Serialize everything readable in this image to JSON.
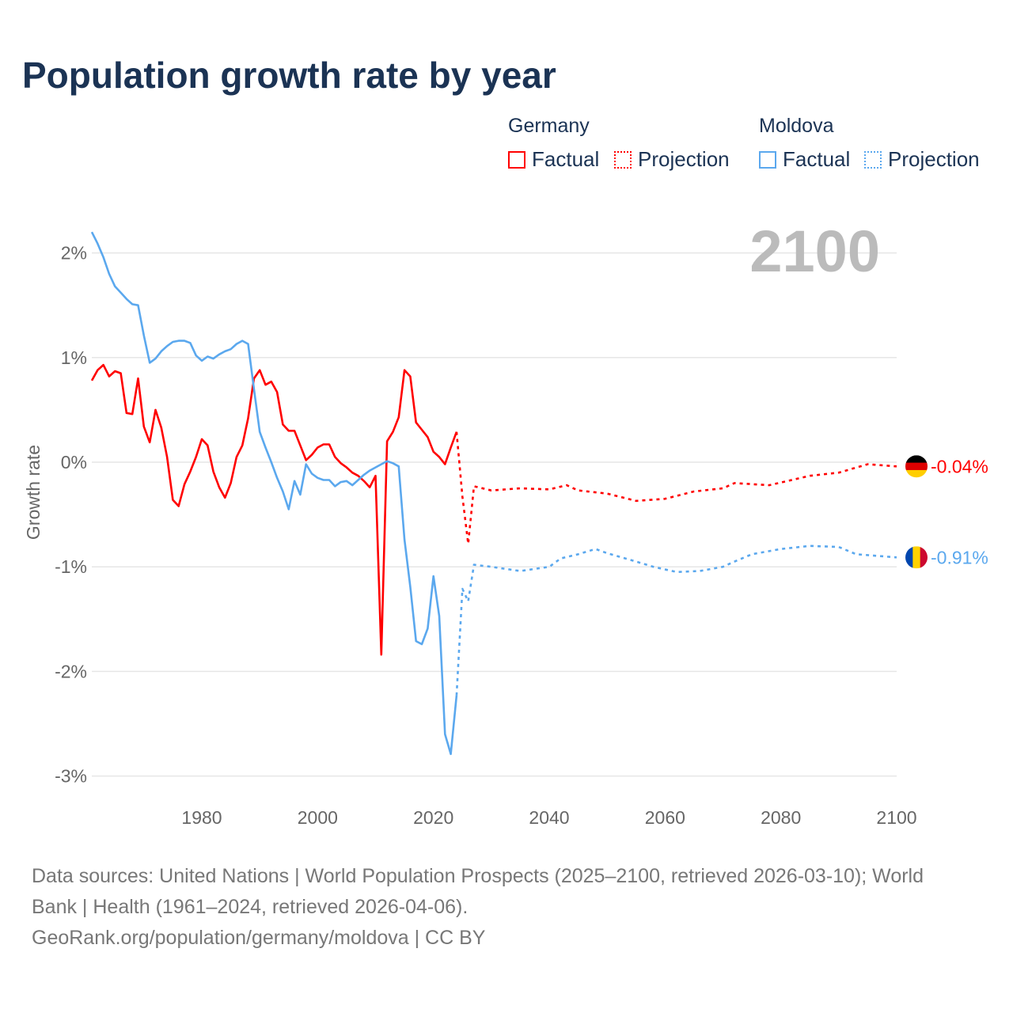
{
  "title": "Population growth rate by year",
  "legend": {
    "germany": "Germany",
    "moldova": "Moldova",
    "factual": "Factual",
    "projection": "Projection"
  },
  "year_label": "2100",
  "source_lines": [
    "Data sources: United Nations | World Population Prospects (2025–2100, retrieved 2026-03-10); World",
    "Bank | Health (1961–2024, retrieved 2026-04-06).",
    "GeoRank.org/population/germany/moldova | CC BY"
  ],
  "colors": {
    "germany": "#ff0000",
    "moldova": "#5ba8ee",
    "grid": "#e6e6e6",
    "axis_text": "#666666"
  },
  "chart_data": {
    "type": "line",
    "title": "Population growth rate by year",
    "xlabel": "",
    "ylabel": "Growth rate",
    "xlim": [
      1961,
      2100
    ],
    "ylim": [
      -3.2,
      2.3
    ],
    "xticks": [
      {
        "v": 1980,
        "label": "1980"
      },
      {
        "v": 2000,
        "label": "2000"
      },
      {
        "v": 2020,
        "label": "2020"
      },
      {
        "v": 2040,
        "label": "2040"
      },
      {
        "v": 2060,
        "label": "2060"
      },
      {
        "v": 2080,
        "label": "2080"
      },
      {
        "v": 2100,
        "label": "2100"
      }
    ],
    "yticks": [
      {
        "v": 2,
        "label": "2%"
      },
      {
        "v": 1,
        "label": "1%"
      },
      {
        "v": 0,
        "label": "0%"
      },
      {
        "v": -1,
        "label": "-1%"
      },
      {
        "v": -2,
        "label": "-2%"
      },
      {
        "v": -3,
        "label": "-3%"
      }
    ],
    "series": [
      {
        "name": "Germany Factual",
        "country": "germany",
        "dashed": false,
        "x_start": 1961,
        "values": [
          0.78,
          0.88,
          0.93,
          0.82,
          0.87,
          0.85,
          0.47,
          0.46,
          0.8,
          0.34,
          0.19,
          0.5,
          0.33,
          0.05,
          -0.36,
          -0.42,
          -0.21,
          -0.09,
          0.05,
          0.22,
          0.16,
          -0.09,
          -0.24,
          -0.34,
          -0.2,
          0.05,
          0.16,
          0.42,
          0.8,
          0.88,
          0.74,
          0.77,
          0.67,
          0.36,
          0.3,
          0.3,
          0.16,
          0.02,
          0.07,
          0.14,
          0.17,
          0.17,
          0.05,
          -0.01,
          -0.05,
          -0.1,
          -0.13,
          -0.18,
          -0.24,
          -0.13,
          -1.84,
          0.2,
          0.29,
          0.43,
          0.88,
          0.82,
          0.38,
          0.31,
          0.24,
          0.1,
          0.05,
          -0.02,
          0.14,
          0.29
        ]
      },
      {
        "name": "Germany Projection",
        "country": "germany",
        "dashed": true,
        "points": [
          [
            2024,
            0.29
          ],
          [
            2025,
            -0.33
          ],
          [
            2026,
            -0.78
          ],
          [
            2027,
            -0.23
          ],
          [
            2030,
            -0.27
          ],
          [
            2035,
            -0.25
          ],
          [
            2040,
            -0.26
          ],
          [
            2043,
            -0.22
          ],
          [
            2045,
            -0.27
          ],
          [
            2050,
            -0.3
          ],
          [
            2055,
            -0.37
          ],
          [
            2060,
            -0.35
          ],
          [
            2065,
            -0.28
          ],
          [
            2070,
            -0.25
          ],
          [
            2072,
            -0.2
          ],
          [
            2078,
            -0.22
          ],
          [
            2085,
            -0.13
          ],
          [
            2090,
            -0.1
          ],
          [
            2095,
            -0.02
          ],
          [
            2100,
            -0.04
          ]
        ]
      },
      {
        "name": "Moldova Factual",
        "country": "moldova",
        "dashed": false,
        "x_start": 1961,
        "values": [
          2.2,
          2.09,
          1.96,
          1.8,
          1.68,
          1.62,
          1.56,
          1.51,
          1.5,
          1.21,
          0.95,
          0.99,
          1.06,
          1.11,
          1.15,
          1.16,
          1.16,
          1.14,
          1.02,
          0.97,
          1.01,
          0.99,
          1.03,
          1.06,
          1.08,
          1.13,
          1.16,
          1.13,
          0.7,
          0.29,
          0.14,
          0.0,
          -0.15,
          -0.28,
          -0.45,
          -0.18,
          -0.31,
          -0.02,
          -0.11,
          -0.15,
          -0.17,
          -0.17,
          -0.23,
          -0.19,
          -0.18,
          -0.22,
          -0.17,
          -0.12,
          -0.08,
          -0.05,
          -0.02,
          0.01,
          -0.01,
          -0.04,
          -0.74,
          -1.19,
          -1.71,
          -1.74,
          -1.59,
          -1.09,
          -1.47,
          -2.6,
          -2.79,
          -2.23
        ]
      },
      {
        "name": "Moldova Projection",
        "country": "moldova",
        "dashed": true,
        "points": [
          [
            2024,
            -2.23
          ],
          [
            2025,
            -1.21
          ],
          [
            2026,
            -1.33
          ],
          [
            2027,
            -0.98
          ],
          [
            2030,
            -1.0
          ],
          [
            2035,
            -1.04
          ],
          [
            2040,
            -1.0
          ],
          [
            2042,
            -0.92
          ],
          [
            2045,
            -0.88
          ],
          [
            2048,
            -0.83
          ],
          [
            2050,
            -0.87
          ],
          [
            2055,
            -0.95
          ],
          [
            2058,
            -1.0
          ],
          [
            2062,
            -1.05
          ],
          [
            2066,
            -1.04
          ],
          [
            2070,
            -1.0
          ],
          [
            2072,
            -0.95
          ],
          [
            2075,
            -0.88
          ],
          [
            2080,
            -0.83
          ],
          [
            2085,
            -0.8
          ],
          [
            2090,
            -0.81
          ],
          [
            2093,
            -0.88
          ],
          [
            2100,
            -0.91
          ]
        ]
      }
    ],
    "end_labels": [
      {
        "country": "germany",
        "value": -0.04,
        "label": "-0.04%"
      },
      {
        "country": "moldova",
        "value": -0.91,
        "label": "-0.91%"
      }
    ]
  }
}
